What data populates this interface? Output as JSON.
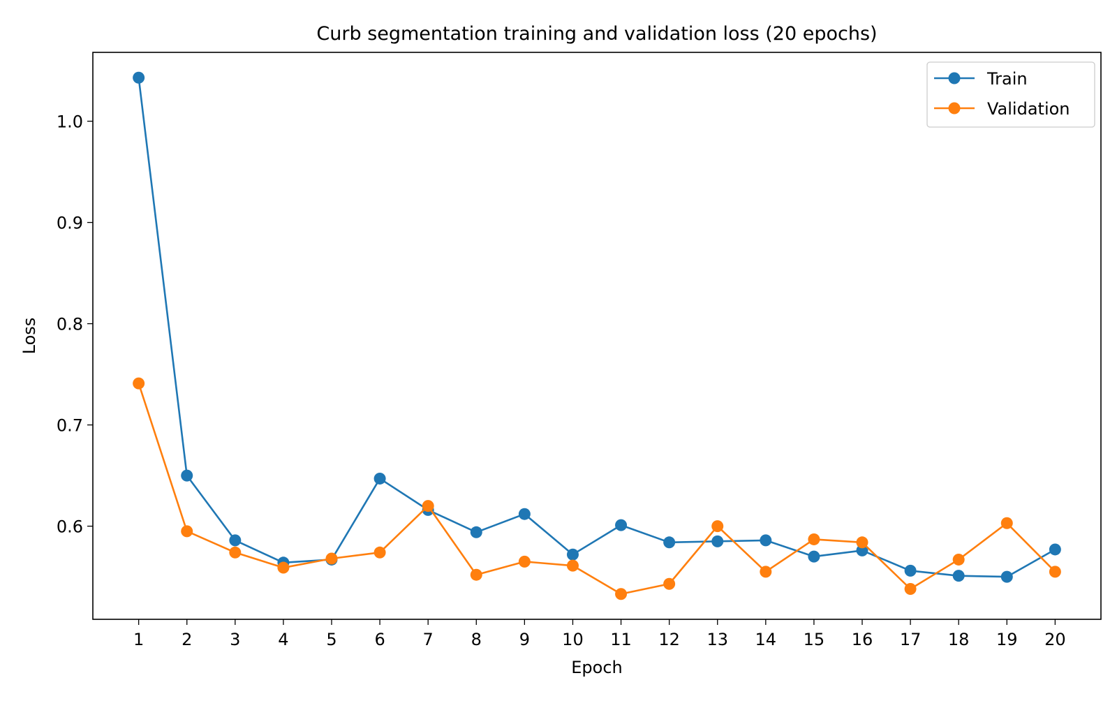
{
  "chart_data": {
    "type": "line",
    "title": "Curb segmentation training and validation loss (20 epochs)",
    "xlabel": "Epoch",
    "ylabel": "Loss",
    "x": [
      1,
      2,
      3,
      4,
      5,
      6,
      7,
      8,
      9,
      10,
      11,
      12,
      13,
      14,
      15,
      16,
      17,
      18,
      19,
      20
    ],
    "xlim": [
      0.05,
      20.95
    ],
    "ylim": [
      0.508,
      1.068
    ],
    "yticks": [
      0.6,
      0.7,
      0.8,
      0.9,
      1.0
    ],
    "ytick_labels": [
      "0.6",
      "0.7",
      "0.8",
      "0.9",
      "1.0"
    ],
    "grid": false,
    "legend_position": "top-right",
    "series": [
      {
        "name": "Train",
        "color": "#1f77b4",
        "marker": "circle",
        "values": [
          1.043,
          0.65,
          0.586,
          0.564,
          0.567,
          0.647,
          0.616,
          0.594,
          0.612,
          0.572,
          0.601,
          0.584,
          0.585,
          0.586,
          0.57,
          0.576,
          0.556,
          0.551,
          0.55,
          0.577
        ]
      },
      {
        "name": "Validation",
        "color": "#ff7f0e",
        "marker": "circle",
        "values": [
          0.741,
          0.595,
          0.574,
          0.559,
          0.568,
          0.574,
          0.62,
          0.552,
          0.565,
          0.561,
          0.533,
          0.543,
          0.6,
          0.555,
          0.587,
          0.584,
          0.538,
          0.567,
          0.603,
          0.555
        ]
      }
    ]
  }
}
